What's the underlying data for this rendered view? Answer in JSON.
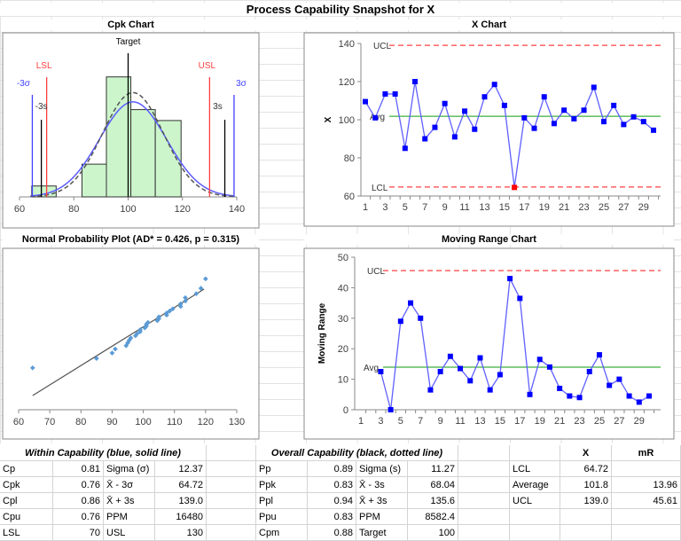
{
  "title": "Process Capability Snapshot for X",
  "chart_data": [
    {
      "type": "bar",
      "title": "Cpk Chart",
      "bins": [
        [
          64.5,
          73.5
        ],
        [
          73.5,
          83
        ],
        [
          83,
          92
        ],
        [
          92,
          101
        ],
        [
          101,
          110
        ],
        [
          110,
          119.5
        ]
      ],
      "values": [
        1,
        0,
        3,
        11,
        8,
        7
      ],
      "xlim": [
        60,
        140
      ],
      "xticks": [
        60,
        80,
        100,
        120,
        140
      ],
      "curves": [
        {
          "name": "within",
          "sigma": 12.37,
          "mean": 101.8,
          "color": "#5b5bff",
          "style": "solid"
        },
        {
          "name": "overall",
          "sigma": 11.27,
          "mean": 101.8,
          "color": "#555555",
          "style": "dashed"
        }
      ],
      "lines": [
        {
          "label": "LSL",
          "value": 70,
          "color": "#ff4040"
        },
        {
          "label": "USL",
          "value": 130,
          "color": "#ff4040"
        },
        {
          "label": "Target",
          "value": 100,
          "color": "#000000"
        },
        {
          "label": "-3σ",
          "value": 64.72,
          "color": "#4040ff"
        },
        {
          "label": "3σ",
          "value": 139.0,
          "color": "#4040ff"
        },
        {
          "label": "-3s",
          "value": 68.04,
          "color": "#000000"
        },
        {
          "label": "3s",
          "value": 135.6,
          "color": "#000000"
        }
      ]
    },
    {
      "type": "line",
      "title": "X Chart",
      "ylabel": "X",
      "ylim": [
        60,
        140
      ],
      "yticks": [
        60,
        80,
        100,
        120,
        140
      ],
      "xticks": [
        1,
        3,
        5,
        7,
        9,
        11,
        13,
        15,
        17,
        19,
        21,
        23,
        25,
        27,
        29
      ],
      "values": [
        109.5,
        101,
        113.5,
        113.5,
        85,
        120,
        90,
        96,
        108.5,
        91,
        104.5,
        95,
        112,
        118.5,
        107.5,
        64.5,
        101,
        95.5,
        112,
        98,
        105,
        100.5,
        105,
        117,
        99,
        107.5,
        97.5,
        101.5,
        99,
        94.5
      ],
      "ucl": 139.0,
      "avg": 101.8,
      "lcl": 64.72,
      "ucl_label": "UCL",
      "avg_label": "Avg",
      "lcl_label": "LCL",
      "highlight": [
        16
      ],
      "point_color": "#0000ff",
      "highlight_color": "#ff0000"
    },
    {
      "type": "scatter",
      "title": "Normal Probability Plot (AD* = 0.426, p = 0.315)",
      "xlim": [
        60,
        130
      ],
      "xticks": [
        60,
        70,
        80,
        90,
        100,
        110,
        120,
        130
      ],
      "fit_mean": 101.8,
      "fit_sigma": 11.27,
      "color": "#5b9bd5"
    },
    {
      "type": "line",
      "title": "Moving Range Chart",
      "ylabel": "Moving Range",
      "ylim": [
        0,
        50
      ],
      "yticks": [
        0,
        10,
        20,
        30,
        40,
        50
      ],
      "xticks": [
        1,
        3,
        5,
        7,
        9,
        11,
        13,
        15,
        17,
        19,
        21,
        23,
        25,
        27,
        29
      ],
      "values": [
        null,
        null,
        12.5,
        0,
        29,
        35,
        30,
        6.5,
        12.5,
        17.5,
        13.5,
        9.5,
        17,
        6.5,
        11.5,
        43,
        36.5,
        5,
        16.5,
        14,
        7,
        4.5,
        4,
        12.5,
        18,
        8,
        10,
        4.5,
        2.5,
        4.5
      ],
      "ucl": 45.61,
      "avg": 13.96,
      "ucl_label": "UCL",
      "avg_label": "Avg"
    }
  ],
  "table": {
    "within_header": "Within Capability (blue, solid line)",
    "overall_header": "Overall Capability (black, dotted line)",
    "x_header": "X",
    "mr_header": "mR",
    "within": [
      [
        "Cp",
        "0.81",
        "Sigma (σ)",
        "12.37"
      ],
      [
        "Cpk",
        "0.76",
        "X̄ - 3σ",
        "64.72"
      ],
      [
        "Cpl",
        "0.86",
        "X̄ + 3s",
        "139.0"
      ],
      [
        "Cpu",
        "0.76",
        "PPM",
        "16480"
      ],
      [
        "LSL",
        "70",
        "USL",
        "130"
      ]
    ],
    "overall": [
      [
        "Pp",
        "0.89",
        "Sigma (s)",
        "11.27"
      ],
      [
        "Ppk",
        "0.83",
        "X̄ - 3s",
        "68.04"
      ],
      [
        "Ppl",
        "0.94",
        "X̄ + 3s",
        "135.6"
      ],
      [
        "Ppu",
        "0.83",
        "PPM",
        "8582.4"
      ],
      [
        "Cpm",
        "0.88",
        "Target",
        "100"
      ]
    ],
    "limits": [
      [
        "LCL",
        "64.72",
        ""
      ],
      [
        "Average",
        "101.8",
        "13.96"
      ],
      [
        "UCL",
        "139.0",
        "45.61"
      ]
    ]
  }
}
